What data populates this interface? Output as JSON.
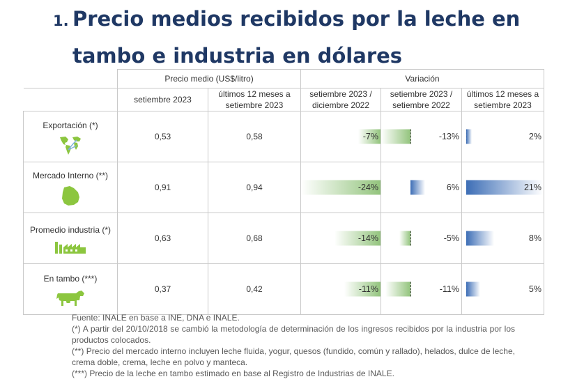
{
  "title": {
    "number": "1.",
    "line1": "Precio medios recibidos por la leche en",
    "line2": "tambo e industria en dólares"
  },
  "table": {
    "group_headers": {
      "price": "Precio medio (US$/litro)",
      "variation": "Variación"
    },
    "sub_headers": {
      "price_month": "setiembre 2023",
      "price_12m_1": "últimos 12 meses a",
      "price_12m_2": "setiembre 2023",
      "var_dec_1": "setiembre 2023 /",
      "var_dec_2": "diciembre 2022",
      "var_yoy_1": "setiembre 2023 /",
      "var_yoy_2": "setiembre 2022",
      "var_12m_1": "últimos 12 meses a",
      "var_12m_2": "setiembre 2023"
    },
    "rows": [
      {
        "label": "Exportación (*)",
        "icon": "world-map-icon",
        "price_month": "0,53",
        "price_12m": "0,58",
        "var_dec": "-7%",
        "var_yoy": "-13%",
        "var_12m": "2%",
        "var_dec_value": -7,
        "var_yoy_value": -13,
        "var_12m_value": 2
      },
      {
        "label": "Mercado Interno (**)",
        "icon": "uruguay-map-icon",
        "price_month": "0,91",
        "price_12m": "0,94",
        "var_dec": "-24%",
        "var_yoy": "6%",
        "var_12m": "21%",
        "var_dec_value": -24,
        "var_yoy_value": 6,
        "var_12m_value": 21
      },
      {
        "label": "Promedio industria (*)",
        "icon": "factory-icon",
        "price_month": "0,63",
        "price_12m": "0,68",
        "var_dec": "-14%",
        "var_yoy": "-5%",
        "var_12m": "8%",
        "var_dec_value": -14,
        "var_yoy_value": -5,
        "var_12m_value": 8
      },
      {
        "label": "En tambo (***)",
        "icon": "cow-icon",
        "price_month": "0,37",
        "price_12m": "0,42",
        "var_dec": "-11%",
        "var_yoy": "-11%",
        "var_12m": "5%",
        "var_dec_value": -11,
        "var_yoy_value": -11,
        "var_12m_value": 5
      }
    ]
  },
  "colors": {
    "title": "#1f3864",
    "value": "#1f73b7",
    "negative_bar": "#93c47d",
    "positive_bar": "#3d6eb6",
    "icon": "#8cc63f"
  },
  "notes": [
    "Fuente: INALE en base a INE, DNA e INALE.",
    "(*) A partir del 20/10/2018 se cambió la metodología de determinación de los ingresos recibidos por la industria por los productos colocados.",
    "(**) Precio del mercado interno incluyen leche fluida, yogur, quesos (fundido, común y rallado), helados, dulce de leche, crema doble, crema, leche en polvo y manteca.",
    "(***) Precio de la leche en tambo estimado en base al Registro de Industrias de INALE."
  ]
}
